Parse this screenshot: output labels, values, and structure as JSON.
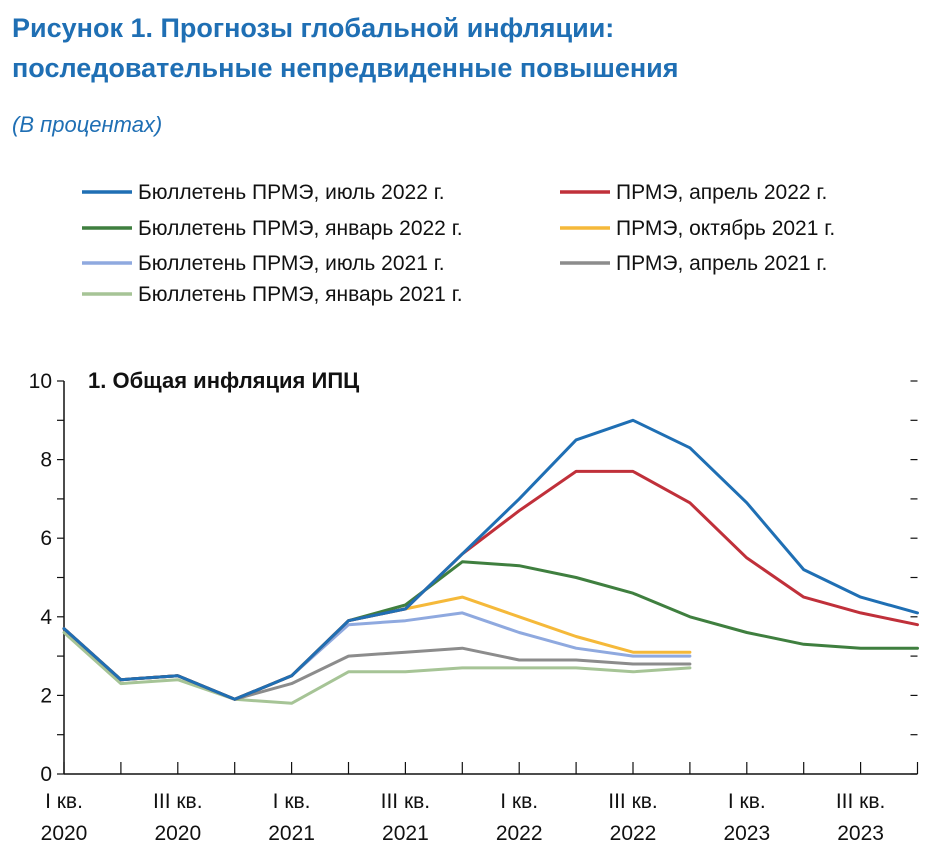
{
  "figure": {
    "title_line1": "Рисунок 1.  Прогнозы глобальной инфляции:",
    "title_line2": "последовательные непредвиденные повышения",
    "subtitle": "(В процентах)"
  },
  "chart_data": {
    "type": "line",
    "title": "1. Общая инфляция ИПЦ",
    "ylim": [
      0,
      10
    ],
    "yticks": [
      0,
      2,
      4,
      6,
      8,
      10
    ],
    "x_labels": [
      {
        "line1": "I кв.",
        "line2": "2020"
      },
      {
        "line1": "III кв.",
        "line2": "2020"
      },
      {
        "line1": "I кв.",
        "line2": "2021"
      },
      {
        "line1": "III кв.",
        "line2": "2021"
      },
      {
        "line1": "I кв.",
        "line2": "2022"
      },
      {
        "line1": "III кв.",
        "line2": "2022"
      },
      {
        "line1": "I кв.",
        "line2": "2023"
      },
      {
        "line1": "III кв.",
        "line2": "2023"
      }
    ],
    "quarters": [
      "2020 I",
      "2020 II",
      "2020 III",
      "2020 IV",
      "2021 I",
      "2021 II",
      "2021 III",
      "2021 IV",
      "2022 I",
      "2022 II",
      "2022 III",
      "2022 IV",
      "2023 I",
      "2023 II",
      "2023 III",
      "2023 IV"
    ],
    "grid": false,
    "legend_position": "top",
    "series": [
      {
        "name": "Бюллетень ПРМЭ, июль 2022 г.",
        "color": "#1f6fb4",
        "values": [
          3.7,
          2.4,
          2.5,
          1.9,
          2.5,
          3.9,
          4.2,
          5.6,
          7.0,
          8.5,
          9.0,
          8.3,
          6.9,
          5.2,
          4.5,
          4.1
        ]
      },
      {
        "name": "Бюллетень ПРМЭ, январь 2022 г.",
        "color": "#3f7f3f",
        "values": [
          3.7,
          2.4,
          2.5,
          1.9,
          2.5,
          3.9,
          4.3,
          5.4,
          5.3,
          5.0,
          4.6,
          4.0,
          3.6,
          3.3,
          3.2,
          3.2
        ]
      },
      {
        "name": "Бюллетень ПРМЭ, июль 2021 г.",
        "color": "#8fa9df",
        "values": [
          3.7,
          2.4,
          2.5,
          1.9,
          2.5,
          3.8,
          3.9,
          4.1,
          3.6,
          3.2,
          3.0,
          3.0
        ]
      },
      {
        "name": "Бюллетень ПРМЭ, январь 2021 г.",
        "color": "#a6c496",
        "values": [
          3.6,
          2.3,
          2.4,
          1.9,
          1.8,
          2.6,
          2.6,
          2.7,
          2.7,
          2.7,
          2.6,
          2.7
        ]
      },
      {
        "name": "ПРМЭ, апрель 2022 г.",
        "color": "#c0303a",
        "values": [
          3.7,
          2.4,
          2.5,
          1.9,
          2.5,
          3.9,
          4.2,
          5.6,
          6.7,
          7.7,
          7.7,
          6.9,
          5.5,
          4.5,
          4.1,
          3.8
        ]
      },
      {
        "name": "ПРМЭ, октябрь 2021 г.",
        "color": "#f5b93a",
        "values": [
          3.7,
          2.4,
          2.5,
          1.9,
          2.5,
          3.9,
          4.2,
          4.5,
          4.0,
          3.5,
          3.1,
          3.1
        ]
      },
      {
        "name": "ПРМЭ, апрель 2021 г.",
        "color": "#8c8c8c",
        "values": [
          3.7,
          2.4,
          2.5,
          1.9,
          2.3,
          3.0,
          3.1,
          3.2,
          2.9,
          2.9,
          2.8,
          2.8
        ]
      }
    ],
    "draw_order": [
      3,
      6,
      2,
      5,
      1,
      4,
      0
    ]
  }
}
